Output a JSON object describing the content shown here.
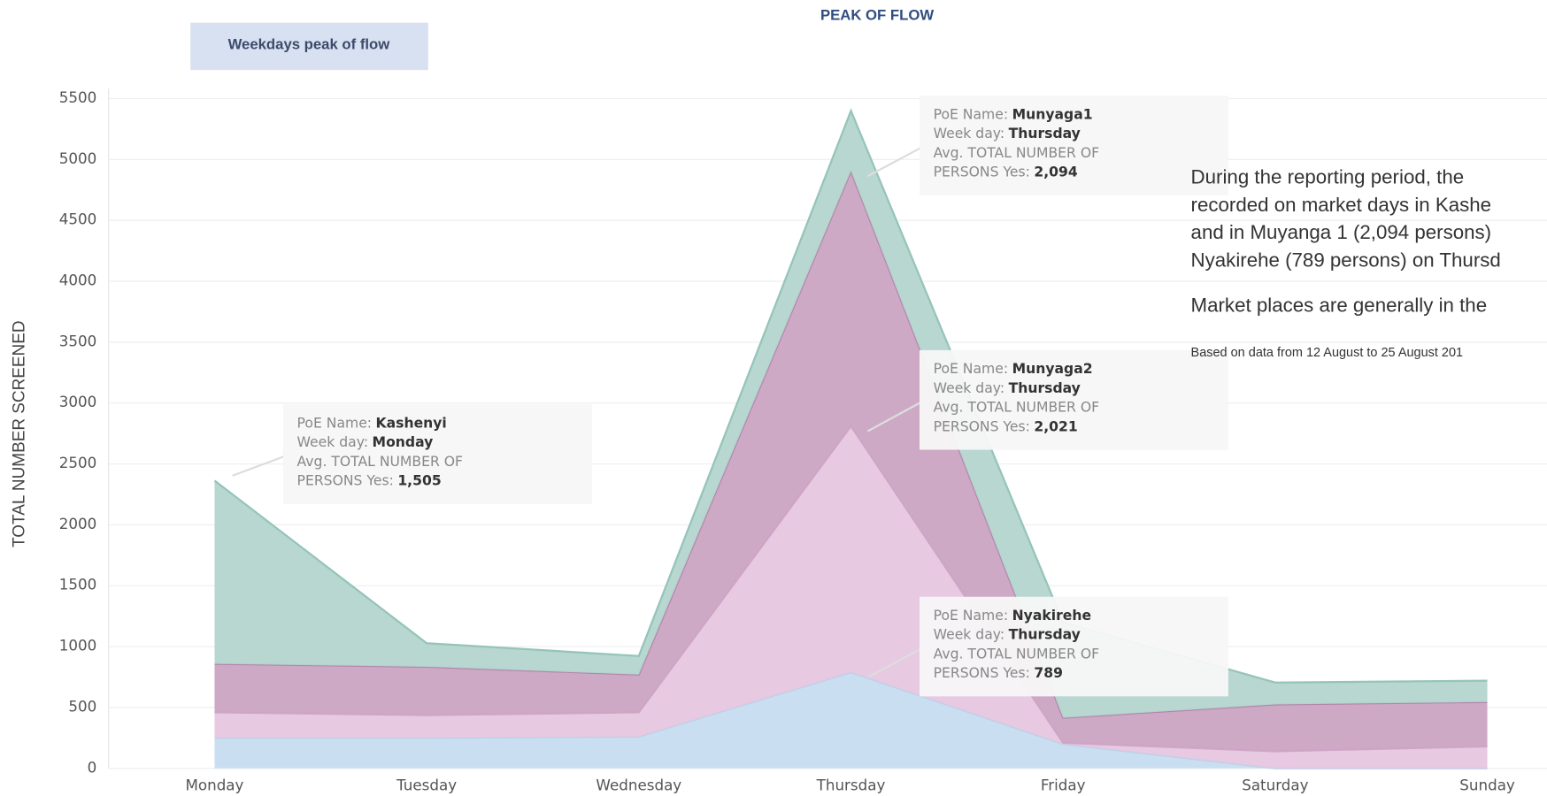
{
  "chart_data": {
    "type": "stacked-area",
    "title": "PEAK OF FLOW",
    "filter_button": "Weekdays peak of flow",
    "ylabel": "TOTAL NUMBER SCREENED",
    "categories": [
      "Monday",
      "Tuesday",
      "Wednesday",
      "Thursday",
      "Friday",
      "Saturday",
      "Sunday"
    ],
    "series": [
      {
        "name": "Nyakirehe",
        "color": "#c6ddf0",
        "stroke": "#b9d2e8",
        "values": [
          250,
          250,
          260,
          789,
          200,
          0,
          0
        ],
        "value_labels": [
          null,
          null,
          null,
          "789",
          null,
          null,
          null
        ]
      },
      {
        "name": "Munyaga2",
        "color": "#e6c6e0",
        "stroke": "#d3a6cb",
        "values": [
          210,
          187,
          200,
          2021,
          10,
          140,
          180
        ],
        "value_labels": [
          null,
          null,
          null,
          "2,021",
          null,
          null,
          null
        ]
      },
      {
        "name": "Munyaga1",
        "color": "#caa4c2",
        "stroke": "#b385ab",
        "values": [
          398,
          397,
          310,
          2094,
          205,
          385,
          365
        ],
        "value_labels": [
          null,
          null,
          null,
          "2,094",
          null,
          null,
          null
        ]
      },
      {
        "name": "Kashenyi",
        "color": "#b3d5cd",
        "stroke": "#95c4b9",
        "values": [
          1505,
          194,
          153,
          496,
          785,
          180,
          175
        ],
        "value_labels": [
          "1,505",
          null,
          null,
          null,
          null,
          null,
          null
        ]
      }
    ],
    "tooltip_fields": [
      "PoE Name:",
      "Week day:",
      "Avg. TOTAL NUMBER OF",
      "PERSONS Yes:"
    ],
    "ylim": [
      0,
      5500
    ],
    "yticks": [
      0,
      500,
      1000,
      1500,
      2000,
      2500,
      3000,
      3500,
      4000,
      4500,
      5000,
      5500
    ],
    "grid": true,
    "side_text": [
      "During the reporting period, the",
      "recorded on market days in Kashe",
      "and in Muyanga 1 (2,094 persons)",
      "Nyakirehe (789 persons) on Thursd",
      "Market places are generally in the"
    ],
    "source_note": "Based on data from 12 August to 25 August 201"
  }
}
